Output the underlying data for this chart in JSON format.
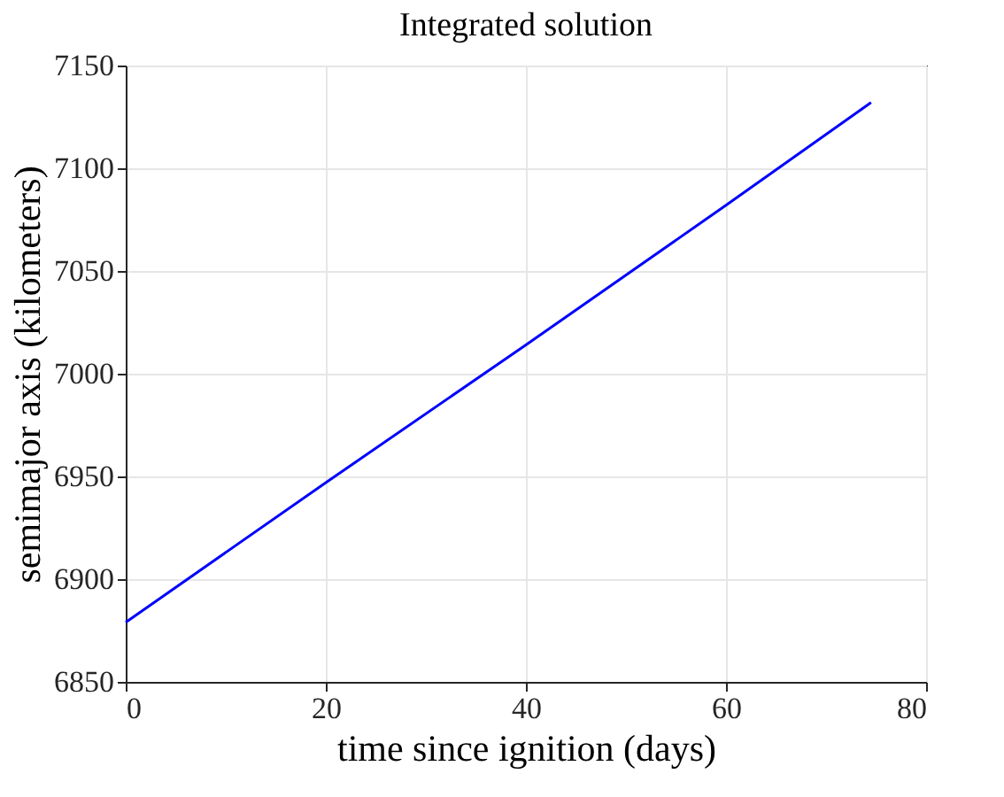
{
  "chart_data": {
    "type": "line",
    "title": "Integrated solution",
    "xlabel": "time since ignition (days)",
    "ylabel": "semimajor axis (kilometers)",
    "x": [
      0,
      20,
      40,
      60,
      74.5
    ],
    "series": [
      {
        "color": "#0000ff",
        "values": [
          6879,
          6947,
          7014,
          7082,
          7132
        ]
      }
    ],
    "xlim": [
      0,
      80
    ],
    "xticks": [
      0,
      20,
      40,
      60,
      80
    ],
    "ylim": [
      6850,
      7150
    ],
    "yticks": [
      6850,
      6900,
      6950,
      7000,
      7050,
      7100,
      7150
    ],
    "grid": true,
    "marker": "none",
    "line_style": "solid"
  }
}
